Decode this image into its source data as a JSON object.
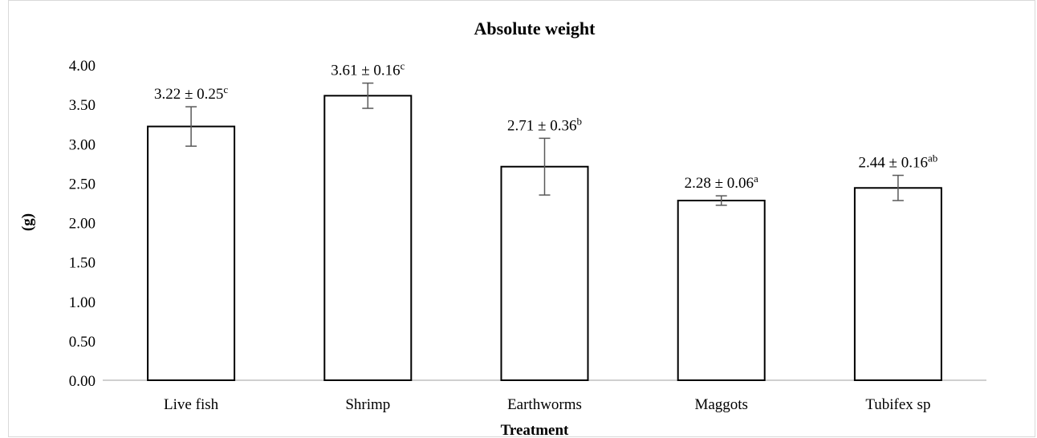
{
  "chart_data": {
    "type": "bar",
    "title": "Absolute weight",
    "xlabel": "Treatment",
    "ylabel": "(g)",
    "categories": [
      "Live fish",
      "Shrimp",
      "Earthworms",
      "Maggots",
      "Tubifex sp"
    ],
    "values": [
      3.22,
      3.61,
      2.71,
      2.28,
      2.44
    ],
    "errors": [
      0.25,
      0.16,
      0.36,
      0.06,
      0.16
    ],
    "labels": [
      {
        "text": "3.22 ± 0.25",
        "sup": "c"
      },
      {
        "text": "3.61 ± 0.16",
        "sup": "c"
      },
      {
        "text": "2.71 ± 0.36",
        "sup": "b"
      },
      {
        "text": "2.28 ± 0.06",
        "sup": "a"
      },
      {
        "text": "2.44 ± 0.16",
        "sup": "ab"
      }
    ],
    "ylim": [
      0,
      4
    ],
    "yticks": [
      "0.00",
      "0.50",
      "1.00",
      "1.50",
      "2.00",
      "2.50",
      "3.00",
      "3.50",
      "4.00"
    ],
    "grid": false,
    "legend": "none",
    "colors": {
      "bar_fill": "#ffffff",
      "bar_stroke": "#000000",
      "error_bar": "#595959",
      "axis": "#bfbfbf",
      "text": "#000000"
    }
  }
}
